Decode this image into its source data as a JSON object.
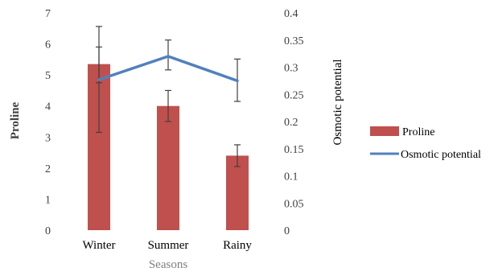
{
  "chart_data": {
    "type": "bar",
    "categories": [
      "Winter",
      "Summer",
      "Rainy"
    ],
    "xlabel": "Seasons",
    "ylabel": "Proline",
    "y2label": "Osmotic potential",
    "ylim": [
      0,
      7
    ],
    "y2lim": [
      0,
      0.4
    ],
    "yticks": [
      "0",
      "1",
      "2",
      "3",
      "4",
      "5",
      "6",
      "7"
    ],
    "y2ticks": [
      "0",
      "0.05",
      "0.1",
      "0.15",
      "0.2",
      "0.25",
      "0.3",
      "0.35",
      "0.4"
    ],
    "grid": false,
    "legend_position": "right",
    "series": [
      {
        "name": "Proline",
        "kind": "bar",
        "axis": "left",
        "color": "#c0504d",
        "values": [
          5.35,
          4.0,
          2.4
        ],
        "error": [
          [
            4.75,
            5.9
          ],
          [
            3.5,
            4.5
          ],
          [
            2.05,
            2.75
          ]
        ]
      },
      {
        "name": "Osmotic potential",
        "kind": "line",
        "axis": "right",
        "color": "#4f81bd",
        "values": [
          0.277,
          0.32,
          0.275
        ],
        "error": [
          [
            0.18,
            0.375
          ],
          [
            0.295,
            0.35
          ],
          [
            0.237,
            0.315
          ]
        ]
      }
    ]
  }
}
